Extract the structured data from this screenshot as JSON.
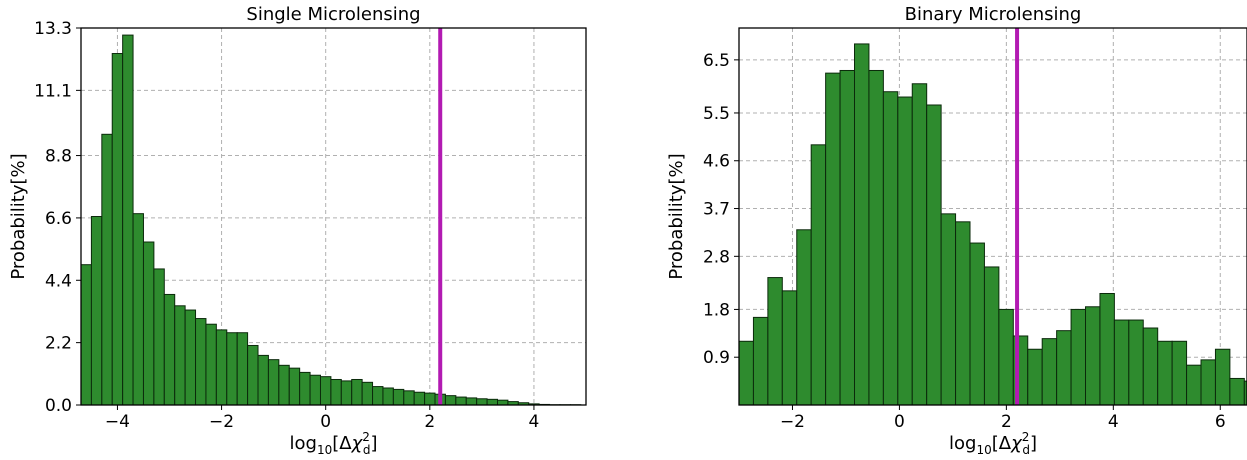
{
  "colors": {
    "bar_fill": "#2e8b2e",
    "bar_edge": "#0b2a0b",
    "marker_line": "#b21ab2",
    "grid": "#b0b0b0"
  },
  "chart_data": [
    {
      "type": "bar",
      "title": "Single Microlensing",
      "xlabel": "log10[Δχ²_d]",
      "xlabel_parts": {
        "base": "log",
        "sub": "10",
        "bracket_open": "[Δ",
        "chi": "χ",
        "sup": "2",
        "chisub": "d",
        "bracket_close": "]"
      },
      "ylabel": "Probability[%]",
      "xlim": [
        -4.7,
        5.0
      ],
      "ylim": [
        0,
        13.3
      ],
      "xticks": [
        -4,
        -2,
        0,
        2,
        4
      ],
      "xtick_labels": [
        "−4",
        "−2",
        "0",
        "2",
        "4"
      ],
      "yticks": [
        0.0,
        2.2,
        4.4,
        6.6,
        8.8,
        11.1,
        13.3
      ],
      "ytick_labels": [
        "0.0",
        "2.2",
        "4.4",
        "6.6",
        "8.8",
        "11.1",
        "13.3"
      ],
      "grid": true,
      "bin_start": -4.7,
      "bin_width": 0.2,
      "values": [
        4.95,
        6.65,
        9.55,
        12.4,
        13.05,
        6.75,
        5.75,
        4.8,
        3.9,
        3.5,
        3.35,
        3.05,
        2.85,
        2.65,
        2.55,
        2.55,
        2.1,
        1.75,
        1.6,
        1.4,
        1.3,
        1.15,
        1.05,
        1.0,
        0.9,
        0.85,
        0.9,
        0.8,
        0.65,
        0.6,
        0.55,
        0.5,
        0.45,
        0.42,
        0.38,
        0.33,
        0.28,
        0.25,
        0.22,
        0.2,
        0.17,
        0.12,
        0.08,
        0.04,
        0.02,
        0.01,
        0.01,
        0.01,
        0.0
      ],
      "vline_x": 2.2
    },
    {
      "type": "bar",
      "title": "Binary Microlensing",
      "xlabel": "log10[Δχ²_d]",
      "xlabel_parts": {
        "base": "log",
        "sub": "10",
        "bracket_open": "[Δ",
        "chi": "χ",
        "sup": "2",
        "chisub": "d",
        "bracket_close": "]"
      },
      "ylabel": "Probability[%]",
      "xlim": [
        -3.0,
        6.5
      ],
      "ylim": [
        0,
        7.1
      ],
      "xticks": [
        -2,
        0,
        2,
        4,
        6
      ],
      "xtick_labels": [
        "−2",
        "0",
        "2",
        "4",
        "6"
      ],
      "yticks": [
        0.9,
        1.8,
        2.8,
        3.7,
        4.6,
        5.5,
        6.5
      ],
      "ytick_labels": [
        "0.9",
        "1.8",
        "2.8",
        "3.7",
        "4.6",
        "5.5",
        "6.5"
      ],
      "grid": true,
      "bin_start": -3.0,
      "bin_width": 0.27,
      "values": [
        1.2,
        1.65,
        2.4,
        2.15,
        3.3,
        4.9,
        6.25,
        6.3,
        6.8,
        6.3,
        5.9,
        5.8,
        6.05,
        5.65,
        3.6,
        3.45,
        3.05,
        2.6,
        1.8,
        1.3,
        1.05,
        1.25,
        1.4,
        1.8,
        1.85,
        2.1,
        1.6,
        1.6,
        1.45,
        1.2,
        1.2,
        0.75,
        0.85,
        1.05,
        0.5,
        0.45
      ],
      "vline_x": 2.2
    }
  ]
}
